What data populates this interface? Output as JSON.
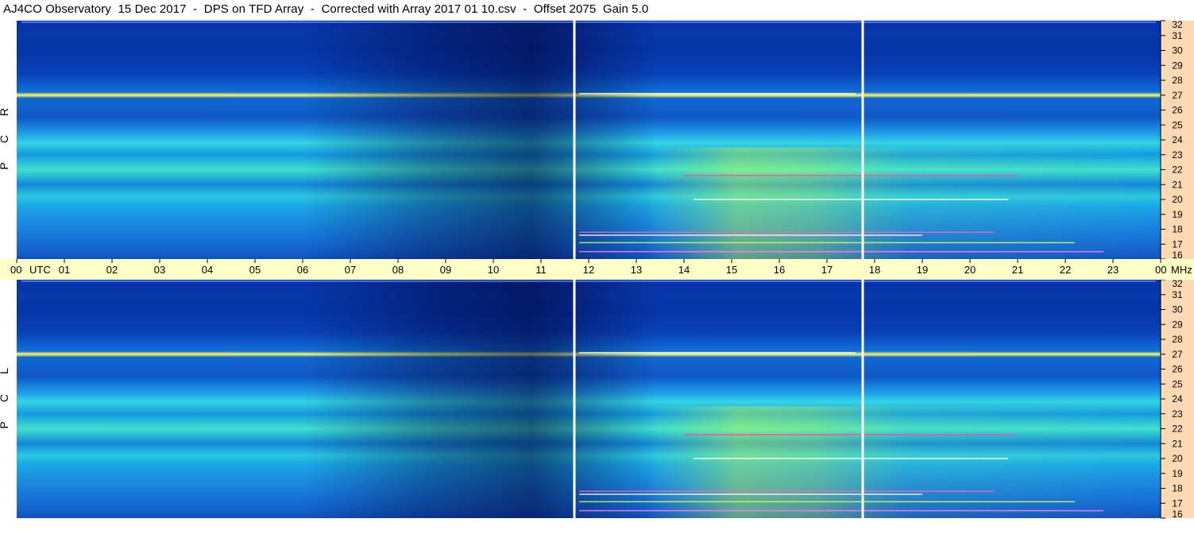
{
  "title": "AJ4CO Observatory  15 Dec 2017  -  DPS on TFD Array  -  Corrected with Array 2017 01 10.csv  -  Offset 2075  Gain 5.0",
  "colors": {
    "time_strip": "#ffffc8",
    "freq_strip": "#ffd9b3",
    "background": "#ffffff"
  },
  "chart_data": [
    {
      "type": "heatmap",
      "panel": "RCP",
      "channel_label": [
        "R",
        "C",
        "P"
      ],
      "x_axis": {
        "label": "UTC",
        "range_hours": [
          0,
          24
        ],
        "tick_labels": [
          "00",
          "01",
          "02",
          "03",
          "04",
          "05",
          "06",
          "07",
          "08",
          "09",
          "10",
          "11",
          "12",
          "13",
          "14",
          "15",
          "16",
          "17",
          "18",
          "19",
          "20",
          "21",
          "22",
          "23",
          "00"
        ]
      },
      "y_axis": {
        "unit": "MHz",
        "range": [
          16,
          32
        ],
        "tick_labels": [
          "32",
          "31",
          "30",
          "29",
          "28",
          "27",
          "26",
          "25",
          "24",
          "23",
          "22",
          "21",
          "20",
          "19",
          "18",
          "17",
          "16"
        ]
      },
      "gaps_utc": [
        11.7,
        17.75
      ],
      "colormap": "jet"
    },
    {
      "type": "heatmap",
      "panel": "LCP",
      "channel_label": [
        "L",
        "C",
        "P"
      ],
      "x_axis": {
        "label": "UTC",
        "range_hours": [
          0,
          24
        ],
        "tick_labels": [
          "00",
          "01",
          "02",
          "03",
          "04",
          "05",
          "06",
          "07",
          "08",
          "09",
          "10",
          "11",
          "12",
          "13",
          "14",
          "15",
          "16",
          "17",
          "18",
          "19",
          "20",
          "21",
          "22",
          "23",
          "00"
        ]
      },
      "y_axis": {
        "unit": "MHz",
        "range": [
          16,
          32
        ],
        "tick_labels": [
          "32",
          "31",
          "30",
          "29",
          "28",
          "27",
          "26",
          "25",
          "24",
          "23",
          "22",
          "21",
          "20",
          "19",
          "18",
          "17",
          "16"
        ]
      },
      "gaps_utc": [
        11.7,
        17.75
      ],
      "colormap": "jet"
    }
  ],
  "time_axis": {
    "utc_label": "UTC",
    "mhz_label": "MHz"
  }
}
